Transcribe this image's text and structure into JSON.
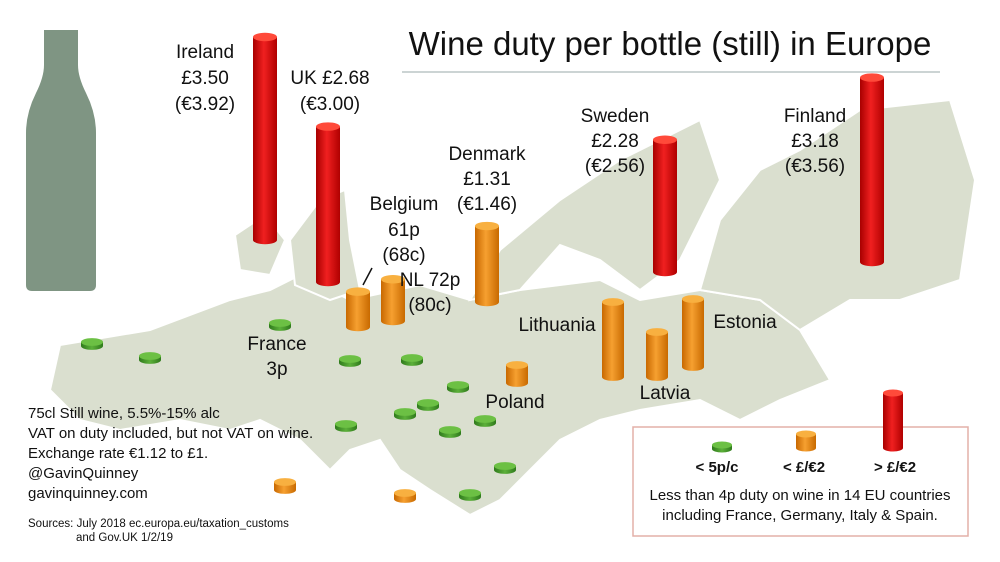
{
  "title": "Wine duty per bottle (still) in Europe",
  "countries": [
    {
      "name": "Ireland",
      "duty": {
        "value": 3.5,
        "label": "£3.50"
      },
      "duty_eur": "(€3.92)"
    },
    {
      "name": "UK",
      "duty": {
        "value": 2.68,
        "label": "£2.68"
      },
      "duty_eur": "(€3.00)"
    },
    {
      "name": "Belgium",
      "duty": {
        "value": 0.61,
        "label": "61p"
      },
      "duty_eur": "(68c)"
    },
    {
      "name": "NL",
      "duty": {
        "value": 0.72,
        "label": "72p"
      },
      "duty_eur": "(80c)"
    },
    {
      "name": "Denmark",
      "duty": {
        "value": 1.31,
        "label": "£1.31"
      },
      "duty_eur": "(€1.46)"
    },
    {
      "name": "Sweden",
      "duty": {
        "value": 2.28,
        "label": "£2.28"
      },
      "duty_eur": "(€2.56)"
    },
    {
      "name": "Finland",
      "duty": {
        "value": 3.18,
        "label": "£3.18"
      },
      "duty_eur": "(€3.56)"
    },
    {
      "name": "France",
      "duty": {
        "value": 0.03,
        "label": "3p"
      }
    }
  ],
  "places": [
    "Lithuania",
    "Latvia",
    "Estonia",
    "Poland"
  ],
  "notes": [
    "75cl Still wine, 5.5%-15% alc",
    "VAT on duty included, but not VAT on wine.",
    "Exchange rate €1.12 to £1.",
    "@GavinQuinney",
    "gavinquinney.com"
  ],
  "sources": [
    "Sources: July 2018 ec.europa.eu/taxation_customs",
    "and Gov.UK 1/2/19"
  ],
  "legend": {
    "items": [
      "< 5p/c",
      "< £/€2",
      "> £/€2"
    ],
    "text": [
      "Less than 4p duty on wine in 14 EU countries",
      "including France, Germany, Italy & Spain."
    ]
  }
}
